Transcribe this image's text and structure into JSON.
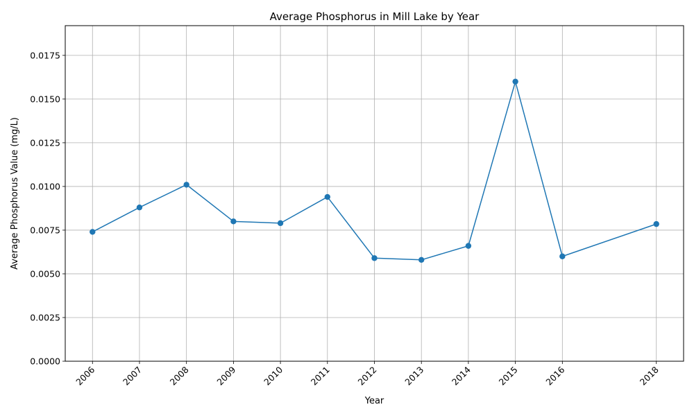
{
  "chart_data": {
    "type": "line",
    "title": "Average Phosphorus in Mill Lake by Year",
    "xlabel": "Year",
    "ylabel": "Average Phosphorus Value (mg/L)",
    "x": [
      2006,
      2007,
      2008,
      2009,
      2010,
      2011,
      2012,
      2013,
      2014,
      2015,
      2016,
      2018
    ],
    "series": [
      {
        "name": "",
        "color": "#1f77b4",
        "values": [
          0.0074,
          0.0088,
          0.0101,
          0.008,
          0.0079,
          0.0094,
          0.0059,
          0.0058,
          0.0066,
          0.016,
          0.006,
          0.00785
        ]
      }
    ],
    "xticks": [
      "2006",
      "2007",
      "2008",
      "2009",
      "2010",
      "2011",
      "2012",
      "2013",
      "2014",
      "2015",
      "2016",
      "2018"
    ],
    "yticks": [
      "0.0000",
      "0.0025",
      "0.0050",
      "0.0075",
      "0.0100",
      "0.0125",
      "0.0150",
      "0.0175"
    ],
    "xlim": [
      2005.42,
      2018.58
    ],
    "ylim": [
      0,
      0.0192
    ],
    "grid": true,
    "marker": "circle",
    "xtick_rotation": -45
  }
}
